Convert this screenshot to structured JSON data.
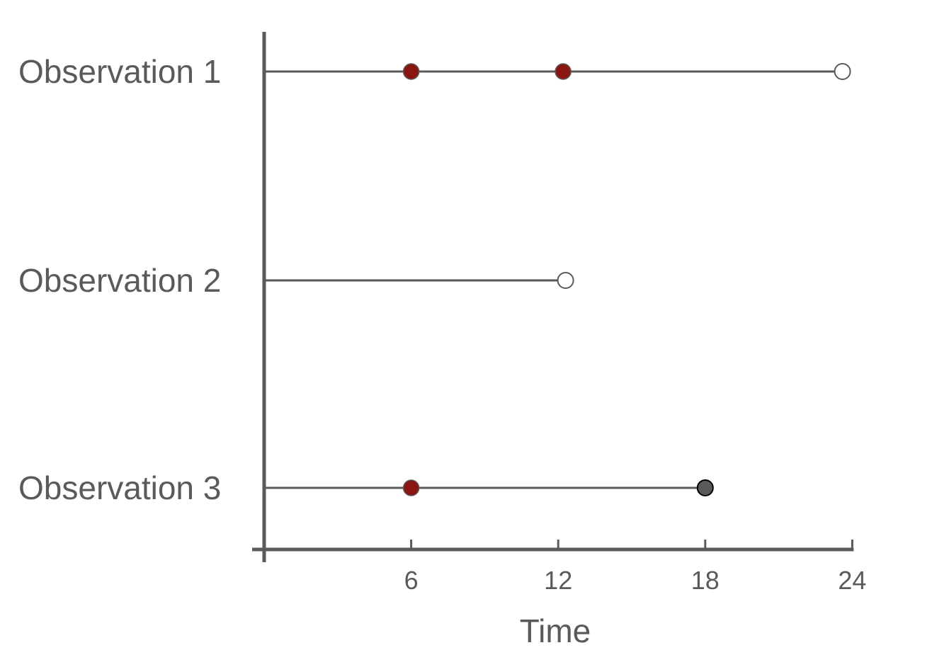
{
  "chart_data": {
    "type": "scatter",
    "title": "",
    "xlabel": "Time",
    "ylabel": "",
    "xlim": [
      0,
      24
    ],
    "xticks": [
      "6",
      "12",
      "18",
      "24"
    ],
    "grid": false,
    "legend": "none",
    "colors": {
      "axis": "#5a5a5a",
      "line": "#5a5a5a",
      "event": "#8b1510",
      "terminal_filled": "#5a5a5a",
      "censored": "#ffffff"
    },
    "rows": [
      {
        "label": "Observation 1",
        "end": 23.6,
        "events": [
          6,
          12.2
        ],
        "end_marker": "open"
      },
      {
        "label": "Observation 2",
        "end": 12.3,
        "events": [],
        "end_marker": "open"
      },
      {
        "label": "Observation 3",
        "end": 18,
        "events": [
          6
        ],
        "end_marker": "filled"
      }
    ]
  }
}
